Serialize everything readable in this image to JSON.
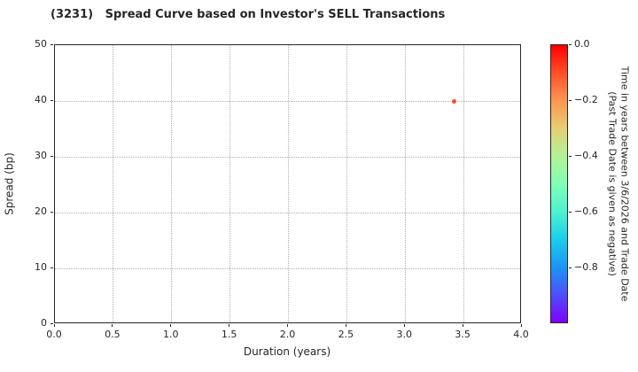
{
  "chart_data": {
    "type": "scatter",
    "title": "(3231)   Spread Curve based on Investor's SELL Transactions",
    "xlabel": "Duration (years)",
    "ylabel": "Spread (bp)",
    "xlim": [
      0.0,
      4.0
    ],
    "ylim": [
      0,
      50
    ],
    "xticks": [
      0.0,
      0.5,
      1.0,
      1.5,
      2.0,
      2.5,
      3.0,
      3.5,
      4.0
    ],
    "xtick_labels": [
      "0.0",
      "0.5",
      "1.0",
      "1.5",
      "2.0",
      "2.5",
      "3.0",
      "3.5",
      "4.0"
    ],
    "yticks": [
      0,
      10,
      20,
      30,
      40,
      50
    ],
    "ytick_labels": [
      "0",
      "10",
      "20",
      "30",
      "40",
      "50"
    ],
    "grid": "dotted",
    "legend": "none",
    "points": [
      {
        "x": 3.42,
        "y": 40.0,
        "color": "#f5512b",
        "color_value_est": -0.1
      }
    ],
    "colorbar": {
      "label_line1": "Time in years between 3/6/2026 and Trade Date",
      "label_line2": "(Past Trade Date is given as negative)",
      "vmax": 0.0,
      "vmin": -1.0,
      "ticks": [
        0.0,
        -0.2,
        -0.4,
        -0.6,
        -0.8
      ],
      "tick_labels": [
        "0.0",
        "−0.2",
        "−0.4",
        "−0.6",
        "−0.8"
      ],
      "colormap": "rainbow",
      "gradient": [
        {
          "pos": 0,
          "color": "#ff0000"
        },
        {
          "pos": 10,
          "color": "#ff4f28"
        },
        {
          "pos": 20,
          "color": "#ff964f"
        },
        {
          "pos": 30,
          "color": "#e6ce74"
        },
        {
          "pos": 40,
          "color": "#b3f396"
        },
        {
          "pos": 50,
          "color": "#80ffb4"
        },
        {
          "pos": 60,
          "color": "#4df3ce"
        },
        {
          "pos": 70,
          "color": "#1aceed"
        },
        {
          "pos": 80,
          "color": "#1a96f3"
        },
        {
          "pos": 90,
          "color": "#4d4ffc"
        },
        {
          "pos": 100,
          "color": "#8000ff"
        }
      ]
    },
    "style": {
      "spine_color": "#262626",
      "grid_color": "#b0b0b0",
      "text_color": "#262626",
      "background": "#ffffff"
    }
  }
}
